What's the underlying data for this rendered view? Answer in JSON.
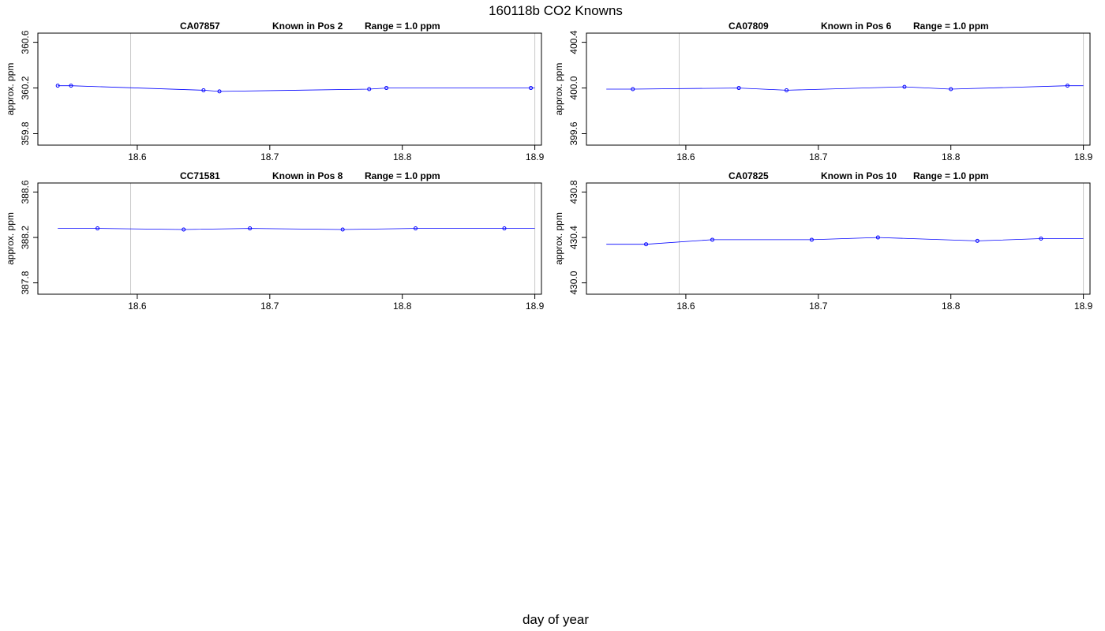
{
  "figure": {
    "title": "160118b   CO2 Knowns",
    "xlabel": "day of year"
  },
  "chart_data": [
    {
      "type": "line",
      "panel_title": [
        "CA07857",
        "Known in Pos 2",
        "Range = 1.0 ppm"
      ],
      "ylabel": "approx. ppm",
      "xlim": [
        18.525,
        18.905
      ],
      "ylim": [
        359.7,
        360.68
      ],
      "xticks": [
        18.6,
        18.7,
        18.8,
        18.9
      ],
      "xtick_labels": [
        "18.6",
        "18.7",
        "18.8",
        "18.9"
      ],
      "yticks": [
        359.8,
        360.2,
        360.6
      ],
      "ytick_labels": [
        "359.8",
        "360.2",
        "360.6"
      ],
      "vlines": [
        18.595,
        18.9
      ],
      "line": {
        "x": [
          18.54,
          18.55,
          18.65,
          18.662,
          18.775,
          18.788,
          18.9
        ],
        "y": [
          360.22,
          360.22,
          360.18,
          360.17,
          360.19,
          360.2,
          360.2
        ]
      },
      "points": {
        "x": [
          18.54,
          18.55,
          18.65,
          18.662,
          18.775,
          18.788,
          18.897
        ],
        "y": [
          360.22,
          360.22,
          360.18,
          360.17,
          360.19,
          360.2,
          360.2
        ]
      }
    },
    {
      "type": "line",
      "panel_title": [
        "CA07809",
        "Known in Pos 6",
        "Range = 1.0 ppm"
      ],
      "ylabel": "approx. ppm",
      "xlim": [
        18.525,
        18.905
      ],
      "ylim": [
        399.5,
        400.48
      ],
      "xticks": [
        18.6,
        18.7,
        18.8,
        18.9
      ],
      "xtick_labels": [
        "18.6",
        "18.7",
        "18.8",
        "18.9"
      ],
      "yticks": [
        399.6,
        400.0,
        400.4
      ],
      "ytick_labels": [
        "399.6",
        "400.0",
        "400.4"
      ],
      "vlines": [
        18.595,
        18.9
      ],
      "line": {
        "x": [
          18.54,
          18.56,
          18.64,
          18.676,
          18.765,
          18.8,
          18.888,
          18.9
        ],
        "y": [
          399.99,
          399.99,
          400.0,
          399.98,
          400.01,
          399.99,
          400.02,
          400.02
        ]
      },
      "points": {
        "x": [
          18.56,
          18.64,
          18.676,
          18.765,
          18.8,
          18.888
        ],
        "y": [
          399.99,
          400.0,
          399.98,
          400.01,
          399.99,
          400.02
        ]
      }
    },
    {
      "type": "line",
      "panel_title": [
        "CC71581",
        "Known in Pos 8",
        "Range = 1.0 ppm"
      ],
      "ylabel": "approx. ppm",
      "xlim": [
        18.525,
        18.905
      ],
      "ylim": [
        387.7,
        388.68
      ],
      "xticks": [
        18.6,
        18.7,
        18.8,
        18.9
      ],
      "xtick_labels": [
        "18.6",
        "18.7",
        "18.8",
        "18.9"
      ],
      "yticks": [
        387.8,
        388.2,
        388.6
      ],
      "ytick_labels": [
        "387.8",
        "388.2",
        "388.6"
      ],
      "vlines": [
        18.595,
        18.9
      ],
      "line": {
        "x": [
          18.54,
          18.57,
          18.635,
          18.685,
          18.755,
          18.81,
          18.877,
          18.9
        ],
        "y": [
          388.28,
          388.28,
          388.27,
          388.28,
          388.27,
          388.28,
          388.28,
          388.28
        ]
      },
      "points": {
        "x": [
          18.57,
          18.635,
          18.685,
          18.755,
          18.81,
          18.877
        ],
        "y": [
          388.28,
          388.27,
          388.28,
          388.27,
          388.28,
          388.28
        ]
      }
    },
    {
      "type": "line",
      "panel_title": [
        "CA07825",
        "Known in Pos 10",
        "Range = 1.0 ppm"
      ],
      "ylabel": "approx. ppm",
      "xlim": [
        18.525,
        18.905
      ],
      "ylim": [
        429.9,
        430.88
      ],
      "xticks": [
        18.6,
        18.7,
        18.8,
        18.9
      ],
      "xtick_labels": [
        "18.6",
        "18.7",
        "18.8",
        "18.9"
      ],
      "yticks": [
        430.0,
        430.4,
        430.8
      ],
      "ytick_labels": [
        "430.0",
        "430.4",
        "430.8"
      ],
      "vlines": [
        18.595,
        18.9
      ],
      "line": {
        "x": [
          18.54,
          18.57,
          18.62,
          18.695,
          18.745,
          18.82,
          18.868,
          18.9
        ],
        "y": [
          430.34,
          430.34,
          430.38,
          430.38,
          430.4,
          430.37,
          430.39,
          430.39
        ]
      },
      "points": {
        "x": [
          18.57,
          18.62,
          18.695,
          18.745,
          18.82,
          18.868
        ],
        "y": [
          430.34,
          430.38,
          430.38,
          430.4,
          430.37,
          430.39
        ]
      }
    }
  ]
}
